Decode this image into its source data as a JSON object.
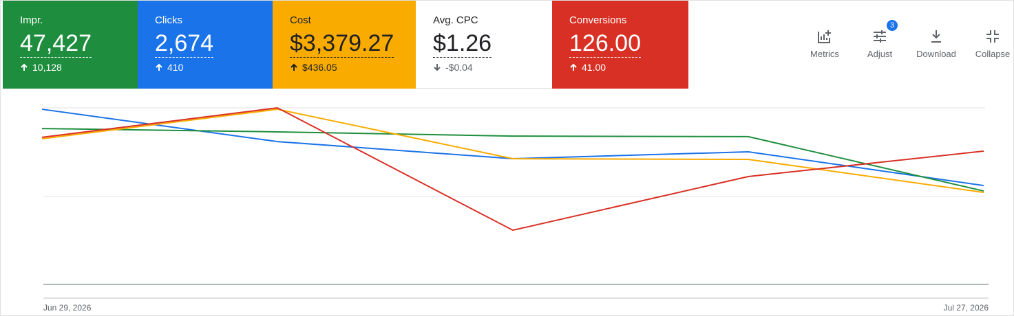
{
  "cards": [
    {
      "label": "Impr.",
      "value": "47,427",
      "change": "10,128",
      "color": "#1e8e3e"
    },
    {
      "label": "Clicks",
      "value": "2,674",
      "change": "410",
      "color": "#1a73e8"
    },
    {
      "label": "Cost",
      "value": "$3,379.27",
      "change": "$436.05",
      "color": "#f9ab00"
    },
    {
      "label": "Avg. CPC",
      "value": "$1.26",
      "change": "-$0.04",
      "color": "#ffffff"
    },
    {
      "label": "Conversions",
      "value": "126.00",
      "change": "41.00",
      "color": "#d93025"
    }
  ],
  "toolbar": {
    "buttons": [
      "Metrics",
      "Adjust",
      "Download",
      "Collapse"
    ],
    "adjust_badge": "3"
  },
  "chart_data": {
    "type": "line",
    "categories": [
      "Jun 29, 2026",
      null,
      null,
      null,
      "Jul 27, 2026"
    ],
    "ylim": [
      0,
      100
    ],
    "gridlines": [
      50,
      100
    ],
    "series": [
      {
        "color": "#1a73e8",
        "values": [
          99.2,
          80.9,
          71.2,
          75.1,
          56.0
        ]
      },
      {
        "color": "#1e8e3e",
        "values": [
          88.3,
          86.4,
          84.0,
          83.7,
          52.9
        ]
      },
      {
        "color": "#f9ab00",
        "values": [
          82.5,
          99.2,
          71.2,
          70.8,
          52.1
        ]
      },
      {
        "color": "#d93025",
        "values": [
          83.3,
          100,
          30.7,
          61.1,
          75.5
        ]
      }
    ]
  }
}
